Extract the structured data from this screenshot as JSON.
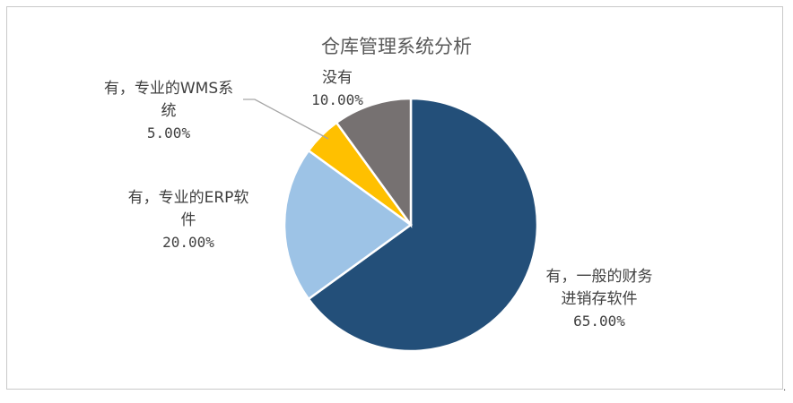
{
  "chart_data": {
    "type": "pie",
    "title": "仓库管理系统分析",
    "slices": [
      {
        "label_lines": [
          "有，一般的财务",
          "进销存软件"
        ],
        "value_label": "65.00%",
        "value": 65.0,
        "color": "#234f79"
      },
      {
        "label_lines": [
          "有，专业的ERP软",
          "件"
        ],
        "value_label": "20.00%",
        "value": 20.0,
        "color": "#9dc3e6"
      },
      {
        "label_lines": [
          "有，专业的WMS系",
          "统"
        ],
        "value_label": "5.00%",
        "value": 5.0,
        "color": "#ffc000"
      },
      {
        "label_lines": [
          "没有"
        ],
        "value_label": "10.00%",
        "value": 10.0,
        "color": "#767171"
      }
    ],
    "start_angle_deg": 0,
    "direction": "clockwise",
    "legend": "none"
  },
  "footer": {
    "dot": "."
  }
}
